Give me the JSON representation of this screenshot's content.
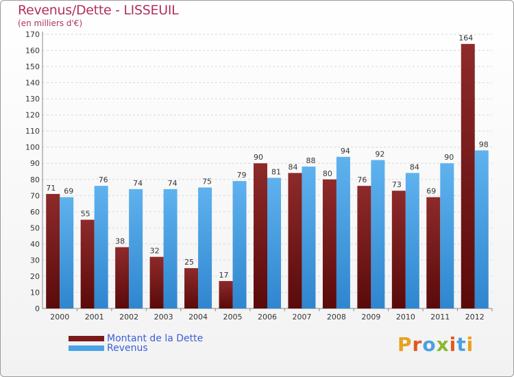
{
  "title": "Revenus/Dette - LISSEUIL",
  "subtitle": "(en milliers d'€)",
  "logo": "Proxiti",
  "chart_data": {
    "type": "bar",
    "categories": [
      "2000",
      "2001",
      "2002",
      "2003",
      "2004",
      "2005",
      "2006",
      "2007",
      "2008",
      "2009",
      "2010",
      "2011",
      "2012"
    ],
    "series": [
      {
        "name": "Montant de la Dette",
        "values": [
          71,
          55,
          38,
          32,
          25,
          17,
          90,
          84,
          80,
          76,
          73,
          69,
          164
        ],
        "color": "#7b1a1a"
      },
      {
        "name": "Revenus",
        "values": [
          69,
          76,
          74,
          74,
          75,
          79,
          81,
          88,
          94,
          92,
          84,
          90,
          98
        ],
        "color": "#4aa3e6"
      }
    ],
    "yticks": [
      0,
      10,
      20,
      30,
      40,
      50,
      60,
      70,
      80,
      90,
      100,
      110,
      120,
      130,
      140,
      150,
      160,
      170
    ],
    "ylim": [
      0,
      170
    ],
    "grid": true,
    "legend": "bottom-left"
  }
}
